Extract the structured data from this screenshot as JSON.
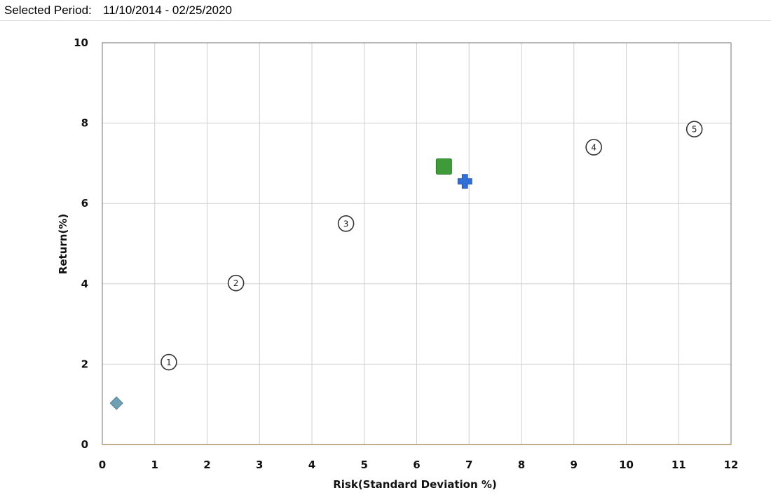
{
  "header": {
    "period_label": "Selected Period:",
    "period_value": "11/10/2014 - 02/25/2020"
  },
  "chart_data": {
    "type": "scatter",
    "xlabel": "Risk(Standard Deviation %)",
    "ylabel": "Return(%)",
    "xlim": [
      0,
      12
    ],
    "ylim": [
      0,
      10
    ],
    "x_ticks": [
      0,
      1,
      2,
      3,
      4,
      5,
      6,
      7,
      8,
      9,
      10,
      11,
      12
    ],
    "y_ticks": [
      0,
      2,
      4,
      6,
      8,
      10
    ],
    "grid": true,
    "points": [
      {
        "label": "1",
        "marker": "numbered-circle",
        "x": 1.27,
        "y": 2.05
      },
      {
        "label": "2",
        "marker": "numbered-circle",
        "x": 2.55,
        "y": 4.02
      },
      {
        "label": "3",
        "marker": "numbered-circle",
        "x": 4.65,
        "y": 5.5
      },
      {
        "label": "4",
        "marker": "numbered-circle",
        "x": 9.38,
        "y": 7.4
      },
      {
        "label": "5",
        "marker": "numbered-circle",
        "x": 11.3,
        "y": 7.85
      },
      {
        "marker": "diamond",
        "color": "#6f9fb3",
        "x": 0.27,
        "y": 1.03
      },
      {
        "marker": "square",
        "color": "#3f9a3a",
        "x": 6.52,
        "y": 6.92
      },
      {
        "marker": "cross",
        "color": "#2f6fd6",
        "x": 6.92,
        "y": 6.55
      }
    ],
    "colors": {
      "grid": "#cfcfcf",
      "frame": "#8a8a8a",
      "x_axis_line": "#b59a6a"
    }
  }
}
